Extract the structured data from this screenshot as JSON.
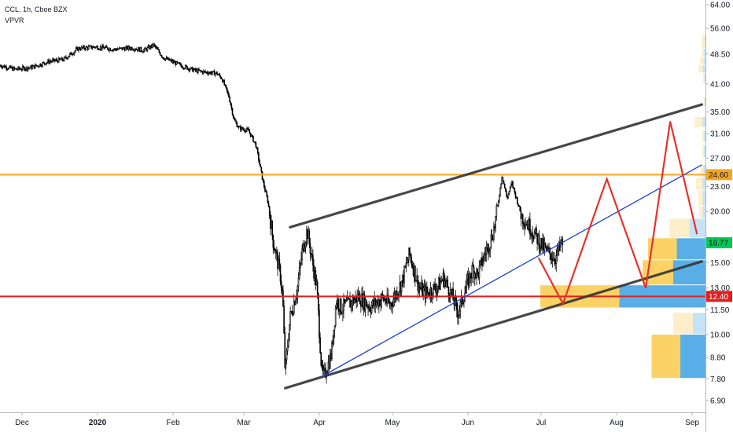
{
  "legend": {
    "symbol_line": "CCL, 1h, Cboe BZX",
    "indicator": "VPVR"
  },
  "colors": {
    "background": "#ffffff",
    "price": "#000000",
    "channel": "#333333",
    "orange_level": "#f5a623",
    "red_level": "#e51c1c",
    "projection": "#e8312b",
    "blue_trend": "#1c3fe0",
    "vp_orange": "#fbd266",
    "vp_blue": "#5aaee8",
    "current_tag": "#00c853"
  },
  "chart_data": {
    "type": "candlestick",
    "symbol": "CCL",
    "interval": "1h",
    "exchange": "Cboe BZX",
    "y_scale": "log",
    "ylim": [
      6.5,
      66
    ],
    "y_ticks": [
      "64.00",
      "56.00",
      "48.50",
      "41.00",
      "35.00",
      "31.00",
      "27.00",
      "23.00",
      "20.00",
      "15.00",
      "13.00",
      "11.50",
      "10.00",
      "8.80",
      "7.80",
      "6.90"
    ],
    "y_tick_values": [
      64,
      56,
      48.5,
      41,
      35,
      31,
      27,
      23,
      20,
      15,
      13,
      11.5,
      10,
      8.8,
      7.8,
      6.9
    ],
    "x_ticks": [
      "Dec",
      "2020",
      "Feb",
      "Mar",
      "Apr",
      "May",
      "Jun",
      "Jul",
      "Aug",
      "Sep"
    ],
    "x_tick_dates": [
      "2019-12-01",
      "2020-01-01",
      "2020-02-01",
      "2020-03-01",
      "2020-04-01",
      "2020-05-01",
      "2020-06-01",
      "2020-07-01",
      "2020-08-01",
      "2020-09-01"
    ],
    "price_path": [
      [
        "2019-11-15",
        44.0
      ],
      [
        "2019-11-22",
        45.5
      ],
      [
        "2019-11-28",
        44.5
      ],
      [
        "2019-12-05",
        45.0
      ],
      [
        "2019-12-12",
        46.5
      ],
      [
        "2019-12-18",
        47.0
      ],
      [
        "2019-12-24",
        50.0
      ],
      [
        "2019-12-31",
        50.5
      ],
      [
        "2020-01-08",
        49.8
      ],
      [
        "2020-01-15",
        50.2
      ],
      [
        "2020-01-20",
        49.5
      ],
      [
        "2020-01-24",
        51.0
      ],
      [
        "2020-01-28",
        47.5
      ],
      [
        "2020-02-04",
        45.5
      ],
      [
        "2020-02-10",
        44.2
      ],
      [
        "2020-02-14",
        43.8
      ],
      [
        "2020-02-19",
        43.5
      ],
      [
        "2020-02-21",
        42.3
      ],
      [
        "2020-02-24",
        38.0
      ],
      [
        "2020-02-26",
        33.5
      ],
      [
        "2020-02-28",
        32.0
      ],
      [
        "2020-03-03",
        31.5
      ],
      [
        "2020-03-06",
        29.0
      ],
      [
        "2020-03-09",
        23.5
      ],
      [
        "2020-03-11",
        21.0
      ],
      [
        "2020-03-13",
        17.0
      ],
      [
        "2020-03-16",
        14.0
      ],
      [
        "2020-03-17",
        12.3
      ],
      [
        "2020-03-18",
        8.0
      ],
      [
        "2020-03-19",
        9.5
      ],
      [
        "2020-03-20",
        11.0
      ],
      [
        "2020-03-23",
        13.0
      ],
      [
        "2020-03-25",
        16.0
      ],
      [
        "2020-03-27",
        18.0
      ],
      [
        "2020-03-31",
        13.0
      ],
      [
        "2020-04-02",
        8.1
      ],
      [
        "2020-04-03",
        7.9
      ],
      [
        "2020-04-06",
        9.0
      ],
      [
        "2020-04-08",
        12.2
      ],
      [
        "2020-04-10",
        11.6
      ],
      [
        "2020-04-14",
        12.0
      ],
      [
        "2020-04-17",
        12.4
      ],
      [
        "2020-04-22",
        11.7
      ],
      [
        "2020-04-27",
        12.3
      ],
      [
        "2020-04-30",
        11.8
      ],
      [
        "2020-05-05",
        13.5
      ],
      [
        "2020-05-08",
        15.8
      ],
      [
        "2020-05-12",
        13.0
      ],
      [
        "2020-05-15",
        12.6
      ],
      [
        "2020-05-20",
        13.2
      ],
      [
        "2020-05-22",
        13.8
      ],
      [
        "2020-05-26",
        12.2
      ],
      [
        "2020-05-28",
        11.3
      ],
      [
        "2020-06-01",
        13.5
      ],
      [
        "2020-06-03",
        14.5
      ],
      [
        "2020-06-05",
        14.0
      ],
      [
        "2020-06-08",
        15.8
      ],
      [
        "2020-06-10",
        16.8
      ],
      [
        "2020-06-12",
        18.5
      ],
      [
        "2020-06-15",
        24.5
      ],
      [
        "2020-06-17",
        21.5
      ],
      [
        "2020-06-19",
        23.5
      ],
      [
        "2020-06-23",
        19.5
      ],
      [
        "2020-06-26",
        18.5
      ],
      [
        "2020-06-30",
        17.0
      ],
      [
        "2020-07-03",
        16.0
      ],
      [
        "2020-07-07",
        15.4
      ],
      [
        "2020-07-09",
        16.5
      ],
      [
        "2020-07-10",
        16.77
      ]
    ],
    "orange_level": 24.6,
    "red_level": 12.4,
    "last_price": 16.77,
    "price_labels": [
      "24.60",
      "16.77",
      "12.40"
    ],
    "channel_lines": [
      [
        [
          "2020-03-20",
          18.3
        ],
        [
          "2020-09-05",
          36.5
        ]
      ],
      [
        [
          "2020-03-18",
          7.4
        ],
        [
          "2020-09-05",
          15.1
        ]
      ]
    ],
    "blue_trendline": [
      [
        "2020-04-02",
        7.9
      ],
      [
        "2020-09-05",
        26.0
      ]
    ],
    "projection_path": [
      [
        "2020-06-30",
        15.4
      ],
      [
        "2020-07-10",
        11.9
      ],
      [
        "2020-07-28",
        24.0
      ],
      [
        "2020-08-13",
        13.0
      ],
      [
        "2020-08-23",
        33.2
      ],
      [
        "2020-09-03",
        17.6
      ]
    ],
    "volume_profile": {
      "bins": [
        {
          "low": 50,
          "high": 54,
          "up": 0.08,
          "down": 0.02
        },
        {
          "low": 47.5,
          "high": 50,
          "up": 0.06,
          "down": 0.04
        },
        {
          "low": 45.5,
          "high": 47.5,
          "up": 0.1,
          "down": 0.05
        },
        {
          "low": 43.5,
          "high": 45.5,
          "up": 0.12,
          "down": 0.08
        },
        {
          "low": 41,
          "high": 43.5,
          "up": 0.04,
          "down": 0.03
        },
        {
          "low": 36,
          "high": 38,
          "up": 0.03,
          "down": 0.02
        },
        {
          "low": 32,
          "high": 34,
          "up": 0.22,
          "down": 0.08
        },
        {
          "low": 29.5,
          "high": 31.5,
          "up": 0.06,
          "down": 0.04
        },
        {
          "low": 27,
          "high": 29,
          "up": 0.05,
          "down": 0.04
        },
        {
          "low": 24.2,
          "high": 26,
          "up": 0.08,
          "down": 0.06
        },
        {
          "low": 22.5,
          "high": 24.2,
          "up": 0.18,
          "down": 0.08
        },
        {
          "low": 20.6,
          "high": 22.5,
          "up": 0.12,
          "down": 0.08
        },
        {
          "low": 19.2,
          "high": 20.6,
          "up": 0.1,
          "down": 0.08
        },
        {
          "low": 17.2,
          "high": 19.2,
          "up": 0.55,
          "down": 0.45
        },
        {
          "low": 15.2,
          "high": 17.2,
          "up": 0.8,
          "down": 0.8
        },
        {
          "low": 13.2,
          "high": 15.2,
          "up": 0.85,
          "down": 0.9
        },
        {
          "low": 11.6,
          "high": 13.2,
          "up": 2.2,
          "down": 2.4
        },
        {
          "low": 10.0,
          "high": 11.3,
          "up": 0.55,
          "down": 0.35
        },
        {
          "low": 7.8,
          "high": 10.0,
          "up": 0.8,
          "down": 0.7
        }
      ]
    }
  }
}
